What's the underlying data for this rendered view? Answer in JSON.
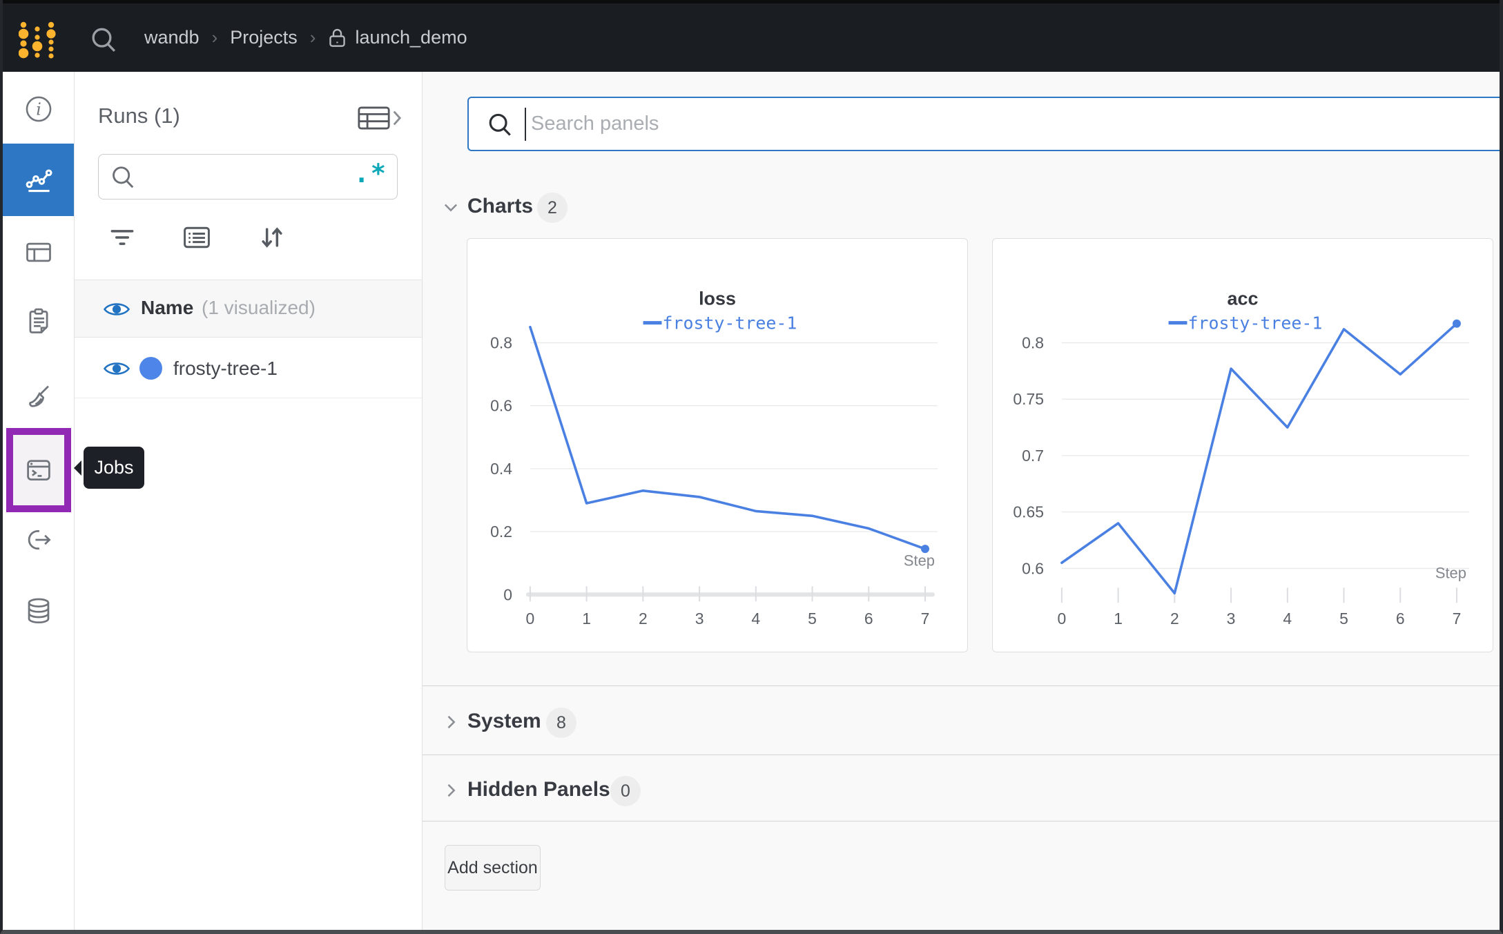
{
  "topbar": {
    "breadcrumb": {
      "home": "wandb",
      "section": "Projects",
      "project": "launch_demo"
    },
    "separator": "›",
    "icons": {
      "logo": "wandb-dots-logo",
      "search": "search-icon",
      "lock": "lock-icon"
    }
  },
  "sidebar": {
    "tooltip": "Jobs",
    "items": [
      {
        "id": "overview",
        "icon": "info-circle-icon",
        "active": false
      },
      {
        "id": "workspace",
        "icon": "line-chart-icon",
        "active": true
      },
      {
        "id": "runs-table",
        "icon": "table-icon",
        "active": false
      },
      {
        "id": "logs",
        "icon": "clipboard-icon",
        "active": false
      },
      {
        "id": "sweeps",
        "icon": "broom-icon",
        "active": false
      },
      {
        "id": "jobs",
        "icon": "terminal-window-icon",
        "active": false,
        "highlighted": true
      },
      {
        "id": "automations",
        "icon": "link-arrow-icon",
        "active": false
      },
      {
        "id": "artifacts",
        "icon": "database-icon",
        "active": false
      }
    ]
  },
  "runs_panel": {
    "title": "Runs (1)",
    "search": {
      "placeholder": "",
      "regex_glyph": ".*"
    },
    "columns_header": {
      "name": "Name",
      "annotation": "(1 visualized)"
    },
    "runs": [
      {
        "name": "frosty-tree-1",
        "color": "#4d86e8",
        "visible": true
      }
    ]
  },
  "main": {
    "search": {
      "placeholder": "Search panels"
    },
    "sections": [
      {
        "label": "Charts",
        "count": "2",
        "expanded": true
      },
      {
        "label": "System",
        "count": "8",
        "expanded": false
      },
      {
        "label": "Hidden Panels",
        "count": "0",
        "expanded": false
      }
    ],
    "add_section_label": "Add section"
  },
  "chart_data": [
    {
      "type": "line",
      "title": "loss",
      "legend": "frosty-tree-1",
      "x": [
        0,
        1,
        2,
        3,
        4,
        5,
        6,
        7
      ],
      "values": [
        0.85,
        0.29,
        0.33,
        0.31,
        0.265,
        0.25,
        0.21,
        0.145
      ],
      "yticks": [
        0,
        0.2,
        0.4,
        0.6,
        0.8
      ],
      "xlabel": "Step",
      "line_color": "#4a80e2",
      "baseline": true,
      "grid": true,
      "legend_position": "top"
    },
    {
      "type": "line",
      "title": "acc",
      "legend": "frosty-tree-1",
      "x": [
        0,
        1,
        2,
        3,
        4,
        5,
        6,
        7
      ],
      "values": [
        0.605,
        0.64,
        0.578,
        0.777,
        0.725,
        0.812,
        0.772,
        0.817
      ],
      "yticks": [
        0.6,
        0.65,
        0.7,
        0.75,
        0.8
      ],
      "xlabel": "Step",
      "line_color": "#4a80e2",
      "baseline": false,
      "grid": true,
      "legend_position": "top"
    }
  ],
  "colors": {
    "topbar_bg": "#1a1d21",
    "accent_blue": "#2e77c4",
    "highlight_purple": "#9129b4",
    "regex_teal": "#0ca8b8",
    "run_color": "#4d86e8",
    "line_blue": "#4a80e2",
    "logo_yellow": "#fcb32e"
  }
}
